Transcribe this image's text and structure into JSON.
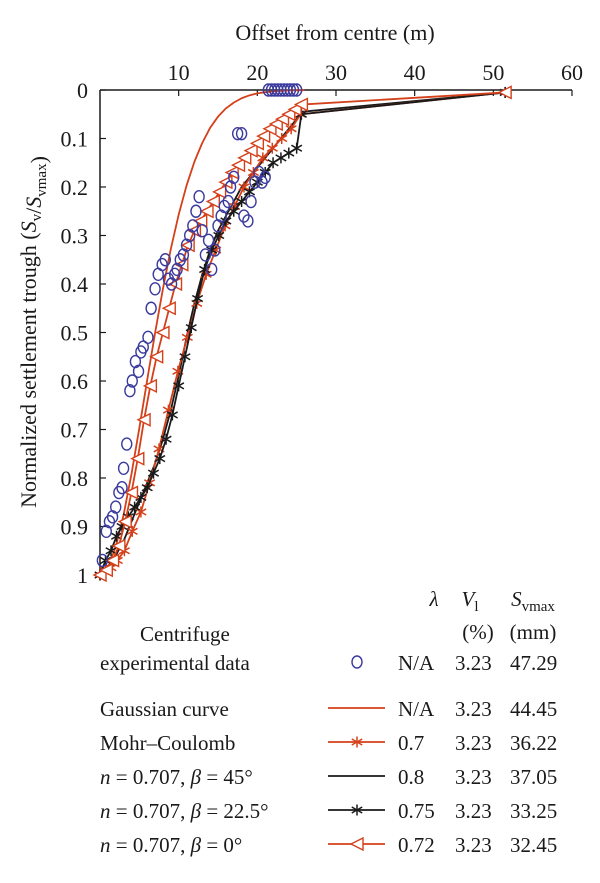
{
  "chart_data": {
    "type": "line",
    "xlabel": "Offset from centre (m)",
    "ylabel": "Normalized settlement trough (S_v/S_vmax)",
    "xlim": [
      0,
      60
    ],
    "ylim": [
      0,
      1
    ],
    "y_inverted": true,
    "x_axis_position": "top",
    "x_ticks": [
      10,
      20,
      30,
      40,
      50,
      60
    ],
    "y_ticks": [
      0,
      0.1,
      0.2,
      0.3,
      0.4,
      0.5,
      0.6,
      0.7,
      0.8,
      0.9,
      1
    ],
    "y_tick_labels": [
      "0",
      "0.1",
      "0.2",
      "0.3",
      "0.4",
      "0.5",
      "0.6",
      "0.7",
      "0.8",
      "0.9",
      "1"
    ],
    "grid": false,
    "legend_position": "bottom",
    "legend_header": {
      "lambda": "λ",
      "vl": "V",
      "vl_sub": "l",
      "vl_unit": "(%)",
      "svmax": "S",
      "svmax_sub": "vmax",
      "svmax_unit": "(mm)"
    },
    "series": [
      {
        "name": "Centrifuge experimental data",
        "name_lines": [
          "Centrifuge",
          "experimental data"
        ],
        "marker": "circle",
        "line": false,
        "color": "#3b3b9e",
        "lambda": "N/A",
        "vl": "3.23",
        "svmax": "47.29",
        "x": [
          0.3,
          0.8,
          1.2,
          1.6,
          2.0,
          2.4,
          2.8,
          3.0,
          3.4,
          3.8,
          4.1,
          4.5,
          4.9,
          5.2,
          5.5,
          6.1,
          6.5,
          7.0,
          7.4,
          7.9,
          8.3,
          8.7,
          9.1,
          9.5,
          9.8,
          10.2,
          10.6,
          11.0,
          11.4,
          11.8,
          12.2,
          12.6,
          13.0,
          13.4,
          13.8,
          14.2,
          14.6,
          15.0,
          15.4,
          15.8,
          16.3,
          16.6,
          17.0,
          17.5,
          18.0,
          18.3,
          18.8,
          19.2,
          19.7,
          20.2,
          20.6,
          21.0,
          21.4,
          21.8,
          22.2,
          22.6,
          23.0,
          23.4,
          23.8,
          24.2,
          24.6,
          25.0
        ],
        "y": [
          0.97,
          0.91,
          0.89,
          0.88,
          0.86,
          0.83,
          0.82,
          0.78,
          0.73,
          0.62,
          0.6,
          0.56,
          0.58,
          0.54,
          0.53,
          0.51,
          0.45,
          0.41,
          0.38,
          0.36,
          0.35,
          0.39,
          0.4,
          0.38,
          0.37,
          0.35,
          0.34,
          0.32,
          0.3,
          0.28,
          0.25,
          0.22,
          0.29,
          0.34,
          0.31,
          0.37,
          0.33,
          0.28,
          0.26,
          0.24,
          0.23,
          0.2,
          0.18,
          0.09,
          0.09,
          0.26,
          0.27,
          0.23,
          0.19,
          0.17,
          0.19,
          0.18,
          0,
          0,
          0,
          0,
          0,
          0,
          0,
          0,
          0,
          0
        ]
      },
      {
        "name": "Gaussian curve",
        "marker": "none",
        "line": true,
        "color": "#d4401a",
        "lambda": "N/A",
        "vl": "3.23",
        "svmax": "44.45",
        "x": [
          0,
          1,
          2,
          3,
          4,
          5,
          6,
          7,
          8,
          9,
          10,
          11,
          12,
          13,
          14,
          15,
          16,
          17,
          18,
          19,
          20,
          21,
          22,
          23,
          24,
          25,
          26
        ],
        "y": [
          1.0,
          0.985,
          0.942,
          0.876,
          0.792,
          0.697,
          0.598,
          0.501,
          0.41,
          0.328,
          0.257,
          0.197,
          0.148,
          0.109,
          0.078,
          0.055,
          0.038,
          0.026,
          0.017,
          0.011,
          0.007,
          0.0045,
          0.0028,
          0.0017,
          0.001,
          0.0006,
          0.0003
        ]
      },
      {
        "name": "Mohr–Coulomb",
        "marker": "asterisk",
        "line": true,
        "color": "#d4401a",
        "lambda": "0.7",
        "vl": "3.23",
        "svmax": "36.22",
        "x": [
          0,
          0.7,
          1.4,
          2.2,
          3.1,
          4.1,
          5.2,
          6.3,
          7.5,
          8.7,
          9.9,
          11.1,
          12.3,
          13.5,
          14.7,
          15.9,
          17.1,
          18.3,
          19.5,
          20.7,
          21.9,
          23.1,
          24.3,
          25.5,
          51.5
        ],
        "y": [
          1.0,
          0.99,
          0.985,
          0.97,
          0.95,
          0.91,
          0.87,
          0.81,
          0.74,
          0.66,
          0.58,
          0.51,
          0.44,
          0.38,
          0.33,
          0.28,
          0.24,
          0.2,
          0.17,
          0.14,
          0.12,
          0.1,
          0.08,
          0.05,
          0.005
        ]
      },
      {
        "name": "n = 0.707, β = 45°",
        "name_parts": [
          "n",
          " = 0.707, ",
          "β",
          " = 45°"
        ],
        "marker": "none",
        "line": true,
        "color": "#1a1a1a",
        "lambda": "0.8",
        "vl": "3.23",
        "svmax": "37.05",
        "x": [
          0,
          1,
          2,
          3,
          4,
          5,
          6,
          7,
          8,
          9,
          10,
          11,
          12,
          13,
          14,
          15,
          16,
          17,
          18,
          19,
          20,
          21,
          22,
          23,
          24,
          25,
          25.6,
          51.5
        ],
        "y": [
          1.0,
          0.985,
          0.96,
          0.93,
          0.89,
          0.85,
          0.81,
          0.77,
          0.72,
          0.66,
          0.59,
          0.51,
          0.44,
          0.38,
          0.33,
          0.29,
          0.26,
          0.23,
          0.2,
          0.18,
          0.16,
          0.14,
          0.12,
          0.1,
          0.08,
          0.06,
          0.045,
          0.005
        ]
      },
      {
        "name": "n = 0.707, β = 22.5°",
        "name_parts": [
          "n",
          " = 0.707, ",
          "β",
          " = 22.5°"
        ],
        "marker": "asterisk",
        "line": true,
        "color": "#1a1a1a",
        "lambda": "0.75",
        "vl": "3.23",
        "svmax": "33.25",
        "x": [
          0,
          0.7,
          1.4,
          2.1,
          2.8,
          3.6,
          4.4,
          5.2,
          6.0,
          6.8,
          7.6,
          8.4,
          9.2,
          10.0,
          10.8,
          11.6,
          12.4,
          13.3,
          14.2,
          15.1,
          16.0,
          17.0,
          18.0,
          19.0,
          20.0,
          21.0,
          22.0,
          23.0,
          24.0,
          25.0,
          25.6,
          51.5
        ],
        "y": [
          1.0,
          0.97,
          0.95,
          0.92,
          0.9,
          0.88,
          0.86,
          0.84,
          0.82,
          0.79,
          0.76,
          0.72,
          0.67,
          0.61,
          0.55,
          0.49,
          0.43,
          0.37,
          0.33,
          0.3,
          0.27,
          0.25,
          0.23,
          0.21,
          0.19,
          0.17,
          0.15,
          0.14,
          0.13,
          0.12,
          0.05,
          0.005
        ]
      },
      {
        "name": "n = 0.707, β = 0°",
        "name_parts": [
          "n",
          " = 0.707, ",
          "β",
          " = 0°"
        ],
        "marker": "triangle-left",
        "line": true,
        "color": "#d4401a",
        "lambda": "0.72",
        "vl": "3.23",
        "svmax": "32.45",
        "x": [
          0,
          0.8,
          1.6,
          2.4,
          3.2,
          4.0,
          4.8,
          5.6,
          6.4,
          7.2,
          8.0,
          8.8,
          9.6,
          10.4,
          11.2,
          12.0,
          12.8,
          13.6,
          14.4,
          15.2,
          16.0,
          16.8,
          17.6,
          18.4,
          19.2,
          20.0,
          20.8,
          21.6,
          22.4,
          23.2,
          24.0,
          24.8,
          25.6,
          51.5
        ],
        "y": [
          1.0,
          0.99,
          0.97,
          0.94,
          0.89,
          0.83,
          0.76,
          0.68,
          0.61,
          0.55,
          0.5,
          0.45,
          0.4,
          0.36,
          0.32,
          0.29,
          0.27,
          0.25,
          0.23,
          0.21,
          0.19,
          0.17,
          0.155,
          0.14,
          0.125,
          0.11,
          0.095,
          0.08,
          0.07,
          0.06,
          0.05,
          0.04,
          0.03,
          0.005
        ]
      }
    ]
  }
}
